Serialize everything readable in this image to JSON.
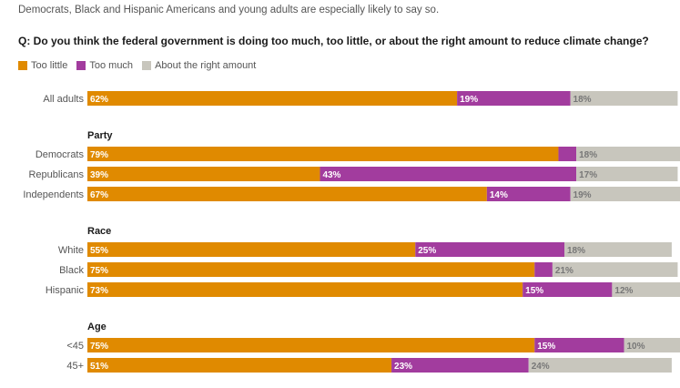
{
  "subtitle": "Democrats, Black and Hispanic Americans and young adults are especially likely to say so.",
  "question": "Q: Do you think the federal government is doing too much, too little, or about the right amount to reduce climate change?",
  "colors": {
    "too_little": "#e08a00",
    "too_much": "#a23c9e",
    "about_right": "#c8c6bd",
    "label_light": "#ffffff",
    "label_dark": "#777777"
  },
  "chart_data": {
    "type": "bar",
    "orientation": "horizontal",
    "stacked": true,
    "legend_position": "top-left",
    "legend": [
      "Too little",
      "Too much",
      "About the right amount"
    ],
    "groups": [
      {
        "label": "",
        "categories": [
          "All adults"
        ]
      },
      {
        "label": "Party",
        "categories": [
          "Democrats",
          "Republicans",
          "Independents"
        ]
      },
      {
        "label": "Race",
        "categories": [
          "White",
          "Black",
          "Hispanic"
        ]
      },
      {
        "label": "Age",
        "categories": [
          "<45",
          "45+"
        ]
      }
    ],
    "categories": [
      "All adults",
      "Democrats",
      "Republicans",
      "Independents",
      "White",
      "Black",
      "Hispanic",
      "<45",
      "45+"
    ],
    "series": [
      {
        "name": "Too little",
        "values": [
          62,
          79,
          39,
          67,
          55,
          75,
          73,
          75,
          51
        ]
      },
      {
        "name": "Too much",
        "values": [
          19,
          3,
          43,
          14,
          25,
          3,
          15,
          15,
          23
        ]
      },
      {
        "name": "About the right amount",
        "values": [
          18,
          18,
          17,
          19,
          18,
          21,
          12,
          10,
          24
        ]
      }
    ],
    "data_labels": [
      [
        "62%",
        "79%",
        "39%",
        "67%",
        "55%",
        "75%",
        "73%",
        "75%",
        "51%"
      ],
      [
        "19%",
        "",
        "43%",
        "14%",
        "25%",
        "",
        "15%",
        "15%",
        "23%"
      ],
      [
        "18%",
        "18%",
        "17%",
        "19%",
        "18%",
        "21%",
        "12%",
        "10%",
        "24%"
      ]
    ],
    "xlim": [
      0,
      100
    ]
  }
}
